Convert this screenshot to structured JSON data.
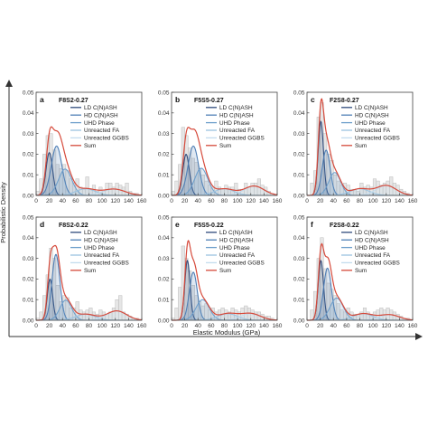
{
  "figure": {
    "ylabel": "Probabilistic Density",
    "xlabel": "Elastic Modulus (GPa)"
  },
  "legend_labels": [
    "LD C(N)ASH",
    "HD C(N)ASH",
    "UHD Phase",
    "Unreacted FA",
    "Unreacted GGBS",
    "Sum"
  ],
  "colors": {
    "ld": "#2f4b7c",
    "hd": "#4f7fb6",
    "uhd": "#6fa0cc",
    "fa": "#9cc3e0",
    "ggbs": "#c3dcee",
    "sum": "#d64a3b",
    "hist_fill": "#e6e6e6",
    "hist_edge": "#b0b0b0",
    "axis": "#333333"
  },
  "chart_data": [
    {
      "type": "area",
      "panel_letter": "a",
      "title": "F8S2-0.27",
      "xlim": [
        0,
        160
      ],
      "ylim": [
        0,
        0.05
      ],
      "xticks": [
        "0",
        "20",
        "40",
        "60",
        "80",
        "100",
        "120",
        "140",
        "160"
      ],
      "yticks": [
        "0.00",
        "0.01",
        "0.02",
        "0.03",
        "0.04",
        "0.05"
      ],
      "legend": "top-right",
      "grid": false,
      "histogram": {
        "bin_width": 5,
        "x_start": 0,
        "heights": [
          0.002,
          0.008,
          0.02,
          0.029,
          0.03,
          0.022,
          0.015,
          0.013,
          0.015,
          0.012,
          0.008,
          0.006,
          0.008,
          0.004,
          0.003,
          0.009,
          0.003,
          0.005,
          0.002,
          0.004,
          0.002,
          0.006,
          0.006,
          0.004,
          0.006,
          0.005,
          0.004,
          0.006,
          0.002,
          0.001,
          0.001,
          0.0
        ]
      },
      "series": [
        {
          "name": "LD C(N)ASH",
          "mean": 20,
          "sd": 5,
          "weight": 0.26
        },
        {
          "name": "HD C(N)ASH",
          "mean": 31,
          "sd": 8,
          "weight": 0.48
        },
        {
          "name": "UHD Phase",
          "mean": 44,
          "sd": 10,
          "weight": 0.32
        },
        {
          "name": "Unreacted FA",
          "mean": 75,
          "sd": 15,
          "weight": 0.12
        },
        {
          "name": "Unreacted GGBS",
          "mean": 118,
          "sd": 17,
          "weight": 0.13
        }
      ]
    },
    {
      "type": "area",
      "panel_letter": "b",
      "title": "F5S5-0.27",
      "xlim": [
        0,
        160
      ],
      "ylim": [
        0,
        0.05
      ],
      "xticks": [
        "0",
        "20",
        "40",
        "60",
        "80",
        "100",
        "120",
        "140",
        "160"
      ],
      "yticks": [
        "0.00",
        "0.01",
        "0.02",
        "0.03",
        "0.04",
        "0.05"
      ],
      "legend": "top-right",
      "grid": false,
      "histogram": {
        "bin_width": 5,
        "x_start": 0,
        "heights": [
          0.002,
          0.007,
          0.015,
          0.033,
          0.029,
          0.023,
          0.018,
          0.016,
          0.013,
          0.01,
          0.007,
          0.005,
          0.004,
          0.007,
          0.004,
          0.003,
          0.005,
          0.004,
          0.004,
          0.006,
          0.003,
          0.003,
          0.006,
          0.004,
          0.006,
          0.006,
          0.008,
          0.005,
          0.004,
          0.002,
          0.001,
          0.0
        ]
      },
      "series": [
        {
          "name": "LD C(N)ASH",
          "mean": 22,
          "sd": 5,
          "weight": 0.25
        },
        {
          "name": "HD C(N)ASH",
          "mean": 33,
          "sd": 8,
          "weight": 0.48
        },
        {
          "name": "UHD Phase",
          "mean": 45,
          "sd": 10,
          "weight": 0.33
        },
        {
          "name": "Unreacted FA",
          "mean": 80,
          "sd": 15,
          "weight": 0.12
        },
        {
          "name": "Unreacted GGBS",
          "mean": 125,
          "sd": 15,
          "weight": 0.17
        }
      ]
    },
    {
      "type": "area",
      "panel_letter": "c",
      "title": "F2S8-0.27",
      "xlim": [
        0,
        160
      ],
      "ylim": [
        0,
        0.05
      ],
      "xticks": [
        "0",
        "20",
        "40",
        "60",
        "80",
        "100",
        "120",
        "140",
        "160"
      ],
      "yticks": [
        "0.00",
        "0.01",
        "0.02",
        "0.03",
        "0.04",
        "0.05"
      ],
      "legend": "top-right",
      "grid": false,
      "histogram": {
        "bin_width": 5,
        "x_start": 0,
        "heights": [
          0.0,
          0.006,
          0.012,
          0.038,
          0.045,
          0.03,
          0.02,
          0.017,
          0.01,
          0.007,
          0.005,
          0.006,
          0.005,
          0.003,
          0.003,
          0.002,
          0.006,
          0.004,
          0.005,
          0.004,
          0.008,
          0.007,
          0.005,
          0.006,
          0.007,
          0.009,
          0.006,
          0.005,
          0.003,
          0.002,
          0.001,
          0.0
        ]
      },
      "series": [
        {
          "name": "LD C(N)ASH",
          "mean": 21,
          "sd": 4,
          "weight": 0.36
        },
        {
          "name": "HD C(N)ASH",
          "mean": 29,
          "sd": 6,
          "weight": 0.33
        },
        {
          "name": "UHD Phase",
          "mean": 42,
          "sd": 9,
          "weight": 0.25
        },
        {
          "name": "Unreacted FA",
          "mean": 80,
          "sd": 15,
          "weight": 0.12
        },
        {
          "name": "Unreacted GGBS",
          "mean": 120,
          "sd": 15,
          "weight": 0.18
        }
      ]
    },
    {
      "type": "area",
      "panel_letter": "d",
      "title": "F8S2-0.22",
      "xlim": [
        0,
        160
      ],
      "ylim": [
        0,
        0.05
      ],
      "xticks": [
        "0",
        "20",
        "40",
        "60",
        "80",
        "100",
        "120",
        "140",
        "160"
      ],
      "yticks": [
        "0.00",
        "0.01",
        "0.02",
        "0.03",
        "0.04",
        "0.05"
      ],
      "legend": "top-right",
      "grid": false,
      "histogram": {
        "bin_width": 5,
        "x_start": 0,
        "heights": [
          0.001,
          0.004,
          0.012,
          0.022,
          0.035,
          0.03,
          0.017,
          0.009,
          0.012,
          0.011,
          0.006,
          0.006,
          0.009,
          0.005,
          0.004,
          0.005,
          0.006,
          0.004,
          0.003,
          0.005,
          0.004,
          0.003,
          0.004,
          0.006,
          0.01,
          0.012,
          0.004,
          0.003,
          0.002,
          0.001,
          0.001,
          0.0
        ]
      },
      "series": [
        {
          "name": "LD C(N)ASH",
          "mean": 21,
          "sd": 4,
          "weight": 0.2
        },
        {
          "name": "HD C(N)ASH",
          "mean": 30,
          "sd": 6,
          "weight": 0.48
        },
        {
          "name": "UHD Phase",
          "mean": 45,
          "sd": 9,
          "weight": 0.22
        },
        {
          "name": "Unreacted FA",
          "mean": 75,
          "sd": 15,
          "weight": 0.11
        },
        {
          "name": "Unreacted GGBS",
          "mean": 122,
          "sd": 15,
          "weight": 0.17
        }
      ]
    },
    {
      "type": "area",
      "panel_letter": "e",
      "title": "F5S5-0.22",
      "xlim": [
        0,
        160
      ],
      "ylim": [
        0,
        0.05
      ],
      "xticks": [
        "0",
        "20",
        "40",
        "60",
        "80",
        "100",
        "120",
        "140",
        "160"
      ],
      "yticks": [
        "0.00",
        "0.01",
        "0.02",
        "0.03",
        "0.04",
        "0.05"
      ],
      "legend": "top-right",
      "grid": false,
      "histogram": {
        "bin_width": 5,
        "x_start": 0,
        "heights": [
          0.001,
          0.006,
          0.016,
          0.036,
          0.03,
          0.024,
          0.017,
          0.012,
          0.009,
          0.007,
          0.008,
          0.005,
          0.006,
          0.004,
          0.005,
          0.006,
          0.005,
          0.004,
          0.006,
          0.005,
          0.004,
          0.006,
          0.007,
          0.006,
          0.005,
          0.004,
          0.004,
          0.003,
          0.002,
          0.002,
          0.001,
          0.0
        ]
      },
      "series": [
        {
          "name": "LD C(N)ASH",
          "mean": 24,
          "sd": 4,
          "weight": 0.29
        },
        {
          "name": "HD C(N)ASH",
          "mean": 33,
          "sd": 6,
          "weight": 0.35
        },
        {
          "name": "UHD Phase",
          "mean": 47,
          "sd": 10,
          "weight": 0.25
        },
        {
          "name": "Unreacted FA",
          "mean": 85,
          "sd": 15,
          "weight": 0.12
        },
        {
          "name": "Unreacted GGBS",
          "mean": 120,
          "sd": 15,
          "weight": 0.12
        }
      ]
    },
    {
      "type": "area",
      "panel_letter": "f",
      "title": "F2S8-0.22",
      "xlim": [
        0,
        160
      ],
      "ylim": [
        0,
        0.05
      ],
      "xticks": [
        "0",
        "20",
        "40",
        "60",
        "80",
        "100",
        "120",
        "140",
        "160"
      ],
      "yticks": [
        "0.00",
        "0.01",
        "0.02",
        "0.03",
        "0.04",
        "0.05"
      ],
      "legend": "top-right",
      "grid": false,
      "histogram": {
        "bin_width": 5,
        "x_start": 0,
        "heights": [
          0.0,
          0.005,
          0.014,
          0.03,
          0.04,
          0.025,
          0.018,
          0.015,
          0.012,
          0.008,
          0.005,
          0.004,
          0.006,
          0.004,
          0.003,
          0.003,
          0.004,
          0.006,
          0.004,
          0.003,
          0.004,
          0.005,
          0.006,
          0.005,
          0.006,
          0.005,
          0.004,
          0.003,
          0.002,
          0.001,
          0.001,
          0.0
        ]
      },
      "series": [
        {
          "name": "LD C(N)ASH",
          "mean": 21,
          "sd": 4,
          "weight": 0.29
        },
        {
          "name": "HD C(N)ASH",
          "mean": 31,
          "sd": 6,
          "weight": 0.38
        },
        {
          "name": "UHD Phase",
          "mean": 45,
          "sd": 10,
          "weight": 0.27
        },
        {
          "name": "Unreacted FA",
          "mean": 85,
          "sd": 15,
          "weight": 0.12
        },
        {
          "name": "Unreacted GGBS",
          "mean": 125,
          "sd": 15,
          "weight": 0.1
        }
      ]
    }
  ]
}
